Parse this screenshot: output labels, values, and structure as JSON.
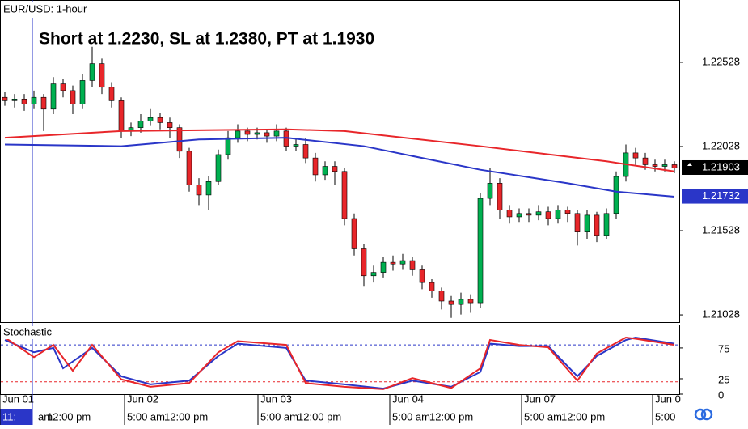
{
  "chart_data": {
    "type": "candlestick",
    "symbol_label": "EUR/USD: 1-hour",
    "title": "Short at 1.2230, SL at 1.2380, PT at 1.1930",
    "indicator_label": "Stochastic",
    "candles": {
      "open": [
        1.2232,
        1.223,
        1.2231,
        1.2228,
        1.2232,
        1.2225,
        1.224,
        1.2236,
        1.2228,
        1.2242,
        1.2252,
        1.2238,
        1.223,
        1.2212,
        1.2214,
        1.2218,
        1.222,
        1.2217,
        1.2214,
        1.22,
        1.218,
        1.2174,
        1.2182,
        1.2198,
        1.2208,
        1.2212,
        1.221,
        1.2211,
        1.2209,
        1.2212,
        1.2203,
        1.2204,
        1.2196,
        1.2186,
        1.2191,
        1.2188,
        1.216,
        1.2142,
        1.2126,
        1.2128,
        1.2134,
        1.2133,
        1.2135,
        1.213,
        1.2122,
        1.2117,
        1.2111,
        1.2109,
        1.2112,
        1.211,
        1.2172,
        1.2181,
        1.2165,
        1.2161,
        1.2163,
        1.2162,
        1.2164,
        1.216,
        1.2165,
        1.2163,
        1.2152,
        1.2162,
        1.215,
        1.2163,
        1.2185,
        1.2199,
        1.2196,
        1.2192,
        1.2191,
        1.2192
      ],
      "high": [
        1.2235,
        1.2234,
        1.2234,
        1.2236,
        1.2234,
        1.2244,
        1.2243,
        1.2239,
        1.2246,
        1.2262,
        1.2255,
        1.2241,
        1.2232,
        1.2217,
        1.2222,
        1.2225,
        1.2223,
        1.222,
        1.2216,
        1.2202,
        1.2184,
        1.2185,
        1.2201,
        1.2212,
        1.2216,
        1.2214,
        1.2214,
        1.2213,
        1.2216,
        1.2214,
        1.2208,
        1.2208,
        1.2199,
        1.2194,
        1.2194,
        1.219,
        1.2163,
        1.2145,
        1.2132,
        1.2137,
        1.2138,
        1.2139,
        1.2137,
        1.2132,
        1.2124,
        1.2119,
        1.2114,
        1.2116,
        1.2115,
        1.2175,
        1.219,
        1.2184,
        1.2168,
        1.2166,
        1.2166,
        1.2168,
        1.2167,
        1.2168,
        1.2167,
        1.2165,
        1.2165,
        1.2164,
        1.2166,
        1.2188,
        1.2204,
        1.2202,
        1.2199,
        1.2195,
        1.2195,
        1.2194
      ],
      "low": [
        1.2227,
        1.2226,
        1.2224,
        1.2225,
        1.2212,
        1.2222,
        1.2232,
        1.2222,
        1.2225,
        1.2238,
        1.2234,
        1.2226,
        1.2208,
        1.2209,
        1.2211,
        1.2215,
        1.2213,
        1.2208,
        1.2196,
        1.2176,
        1.2168,
        1.2165,
        1.218,
        1.2195,
        1.2205,
        1.2206,
        1.2207,
        1.2205,
        1.2206,
        1.22,
        1.22,
        1.2193,
        1.2182,
        1.2183,
        1.218,
        1.2156,
        1.2138,
        1.212,
        1.2122,
        1.2125,
        1.2129,
        1.213,
        1.2126,
        1.2118,
        1.2113,
        1.2106,
        1.2101,
        1.2103,
        1.2104,
        1.2107,
        1.2168,
        1.216,
        1.2157,
        1.2158,
        1.2158,
        1.2159,
        1.2156,
        1.2157,
        1.2158,
        1.2144,
        1.2148,
        1.2146,
        1.2148,
        1.216,
        1.2182,
        1.2192,
        1.2189,
        1.2188,
        1.2188,
        1.2187
      ],
      "close": [
        1.223,
        1.2231,
        1.2228,
        1.2232,
        1.2225,
        1.224,
        1.2236,
        1.2228,
        1.2242,
        1.2252,
        1.2238,
        1.223,
        1.2212,
        1.2214,
        1.2218,
        1.222,
        1.2217,
        1.2214,
        1.22,
        1.218,
        1.2174,
        1.2182,
        1.2198,
        1.2208,
        1.2212,
        1.221,
        1.2211,
        1.2209,
        1.2212,
        1.2203,
        1.2204,
        1.2196,
        1.2186,
        1.2191,
        1.2188,
        1.216,
        1.2142,
        1.2126,
        1.2128,
        1.2134,
        1.2133,
        1.2135,
        1.213,
        1.2122,
        1.2117,
        1.2111,
        1.2109,
        1.2112,
        1.211,
        1.2172,
        1.2181,
        1.2165,
        1.2161,
        1.2163,
        1.2162,
        1.2164,
        1.216,
        1.2165,
        1.2163,
        1.2152,
        1.2162,
        1.215,
        1.2163,
        1.2185,
        1.2199,
        1.2196,
        1.2192,
        1.2191,
        1.2192,
        1.219
      ],
      "up_color": "#00b050",
      "down_color": "#e8262a"
    },
    "moving_averages": [
      {
        "color": "#e8262a",
        "x": [
          0,
          12,
          29,
          35,
          49,
          62,
          69
        ],
        "values": [
          1.2208,
          1.2212,
          1.2213,
          1.2212,
          1.2203,
          1.2194,
          1.2188
        ]
      },
      {
        "color": "#2a36c8",
        "x": [
          0,
          12,
          20,
          29,
          37,
          49,
          58,
          63,
          69
        ],
        "values": [
          1.2204,
          1.2203,
          1.2207,
          1.2208,
          1.2203,
          1.2189,
          1.2181,
          1.2176,
          1.2173
        ]
      }
    ],
    "ylim": [
      1.20985,
      1.22893
    ],
    "yticks": [
      1.22528,
      1.22028,
      1.21528,
      1.21028
    ],
    "last_price": 1.21903,
    "ma_price": 1.21732,
    "stochastic": {
      "series": [
        {
          "color": "#2a36c8",
          "x": [
            0,
            3,
            5,
            6,
            9,
            12,
            15,
            19,
            22,
            24,
            29,
            31,
            35,
            39,
            42,
            46,
            49,
            50,
            53,
            56,
            59,
            61,
            64,
            65,
            69
          ],
          "values": [
            88,
            68,
            75,
            42,
            75,
            29,
            16,
            22,
            62,
            82,
            75,
            22,
            16,
            9,
            22,
            12,
            36,
            82,
            78,
            78,
            29,
            62,
            88,
            92,
            82
          ]
        },
        {
          "color": "#e8262a",
          "x": [
            0,
            3,
            5,
            7,
            9,
            12,
            15,
            19,
            22,
            24,
            29,
            31,
            35,
            39,
            42,
            46,
            49,
            50,
            53,
            56,
            59,
            61,
            64,
            65,
            69
          ],
          "values": [
            92,
            60,
            80,
            38,
            80,
            24,
            12,
            18,
            68,
            86,
            80,
            18,
            12,
            8,
            26,
            10,
            42,
            88,
            80,
            76,
            22,
            66,
            92,
            90,
            80
          ]
        }
      ],
      "levels": [
        {
          "value": 80,
          "color": "#2a36c8"
        },
        {
          "value": 20,
          "color": "#e8262a"
        }
      ],
      "ylim": [
        0,
        113
      ],
      "yticks": [
        75,
        25,
        0
      ]
    },
    "dates": [
      "Jun 01",
      "Jun 02",
      "Jun 03",
      "Jun 04",
      "Jun 07",
      "Jun 0"
    ],
    "times": [
      "11:",
      "am",
      "12:00 pm",
      "5:00 am",
      "12:00 pm",
      "5:00 am",
      "12:00 pm",
      "5:00 am",
      "12:00 pm",
      "5:00 am",
      "12:00 pm",
      "5:00"
    ]
  }
}
